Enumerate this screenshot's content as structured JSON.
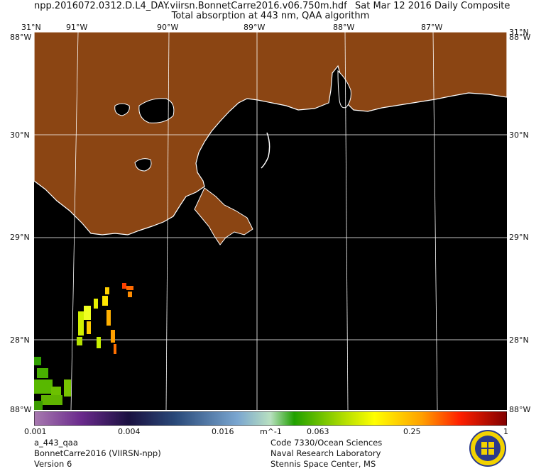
{
  "header": {
    "file_name": "npp.2016072.0312.D.L4_DAY.viirsn.BonnetCarre2016.v06.750m.hdf",
    "date_info": "Sat Mar 12 2016 Daily Composite",
    "product_title": "Total absorption at 443 nm, QAA algorithm"
  },
  "axes": {
    "lon_labels": [
      "91°W",
      "90°W",
      "89°W",
      "88°W",
      "87°W"
    ],
    "lat_labels": [
      "31°N",
      "30°N",
      "29°N",
      "28°N"
    ],
    "corner_top": "88°W",
    "corner_bottom": "88°W"
  },
  "colorbar": {
    "scale": "log",
    "unit": "m^-1",
    "tick_labels": [
      "0.001",
      "0.004",
      "0.016",
      "0.063",
      "0.25",
      "1"
    ],
    "tick_values": [
      0.001,
      0.004,
      0.016,
      0.063,
      0.25,
      1
    ],
    "range": [
      0.001,
      1
    ]
  },
  "footer": {
    "left": [
      "a_443_qaa",
      "BonnetCarre2016 (VIIRSN-npp)",
      "Version 6"
    ],
    "right": [
      "Code 7330/Ocean Sciences",
      "Naval Research Laboratory",
      "Stennis Space Center, MS"
    ]
  },
  "colors": {
    "land": "#8b4513",
    "no_data": "#000000",
    "coastline": "#ffffff",
    "graticule": "#ffffff"
  },
  "map": {
    "lon_range": [
      -91.5,
      -86.3
    ],
    "lat_range": [
      27.3,
      31.0
    ]
  }
}
